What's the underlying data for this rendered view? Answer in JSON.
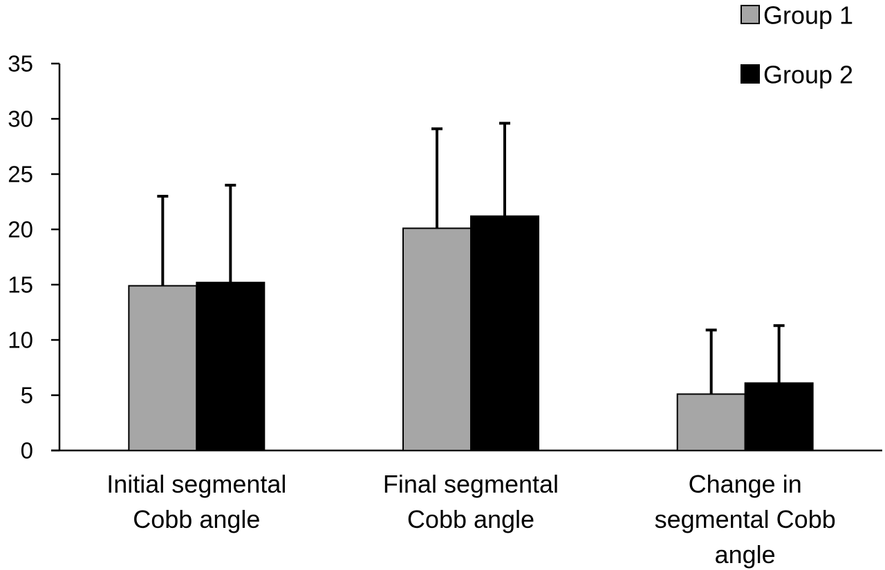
{
  "chart_data": {
    "type": "bar",
    "title": "",
    "xlabel": "",
    "ylabel": "",
    "ylim": [
      0,
      35
    ],
    "yticks": [
      0,
      5,
      10,
      15,
      20,
      25,
      30,
      35
    ],
    "grid": false,
    "legend_position": "top-right",
    "categories": [
      [
        "Initial segmental",
        "Cobb angle"
      ],
      [
        "Final segmental",
        "Cobb angle"
      ],
      [
        "Change in",
        "segmental Cobb",
        "angle"
      ]
    ],
    "series": [
      {
        "name": "Group 1",
        "color": "#a6a6a6",
        "values": [
          14.9,
          20.1,
          5.1
        ],
        "error_upper": [
          23.0,
          29.1,
          10.9
        ]
      },
      {
        "name": "Group 2",
        "color": "#000000",
        "values": [
          15.2,
          21.2,
          6.1
        ],
        "error_upper": [
          24.0,
          29.6,
          11.3
        ]
      }
    ]
  }
}
